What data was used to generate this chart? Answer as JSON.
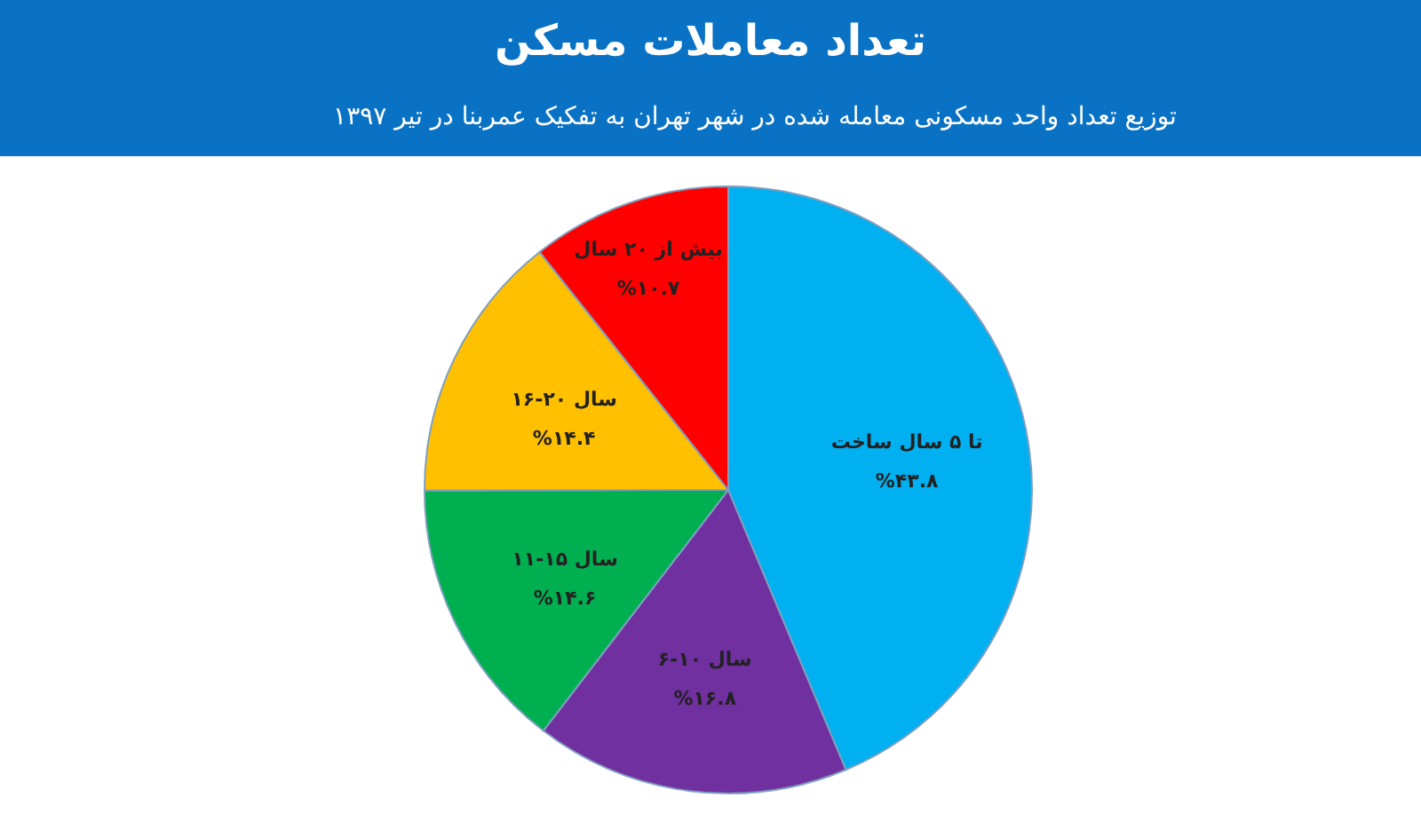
{
  "chart_data": {
    "type": "pie",
    "title": "تعداد معاملات مسکن",
    "subtitle": "توزیع تعداد واحد مسکونی معامله شده در شهر تهران به تفکیک عمربنا در تیر ۱۳۹۷",
    "categories": [
      "تا ۵ سال ساخت",
      "۶-۱۰ سال",
      "۱۱-۱۵ سال",
      "۱۶-۲۰ سال",
      "بیش از ۲۰ سال"
    ],
    "values": [
      43.8,
      16.8,
      14.6,
      14.4,
      10.7
    ],
    "value_labels": [
      "%۴۳.۸",
      "%۱۶.۸",
      "%۱۴.۶",
      "%۱۴.۴",
      "%۱۰.۷"
    ],
    "colors": [
      "#00b0f0",
      "#7030a0",
      "#00b050",
      "#ffc000",
      "#ff0000"
    ]
  }
}
